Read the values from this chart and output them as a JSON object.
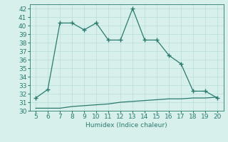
{
  "x": [
    5,
    6,
    7,
    8,
    9,
    10,
    11,
    12,
    13,
    14,
    15,
    16,
    17,
    18,
    19,
    20
  ],
  "y_upper": [
    31.5,
    32.5,
    40.3,
    40.3,
    39.5,
    40.3,
    38.3,
    38.3,
    42.0,
    38.3,
    38.3,
    36.5,
    35.5,
    32.3,
    32.3,
    31.5
  ],
  "y_lower": [
    30.3,
    30.3,
    30.3,
    30.5,
    30.6,
    30.7,
    30.8,
    31.0,
    31.1,
    31.2,
    31.3,
    31.4,
    31.4,
    31.5,
    31.5,
    31.6
  ],
  "line_color": "#2a7a6d",
  "bg_color": "#d8f0ec",
  "grid_color": "#b8ddd8",
  "xlabel": "Humidex (Indice chaleur)",
  "ylim": [
    30,
    42.5
  ],
  "xlim": [
    4.5,
    20.5
  ],
  "yticks": [
    30,
    31,
    32,
    33,
    34,
    35,
    36,
    37,
    38,
    39,
    40,
    41,
    42
  ],
  "xticks": [
    5,
    6,
    7,
    8,
    9,
    10,
    11,
    12,
    13,
    14,
    15,
    16,
    17,
    18,
    19,
    20
  ],
  "marker": "+",
  "markersize": 4,
  "linewidth": 0.9,
  "font_size": 6.5
}
